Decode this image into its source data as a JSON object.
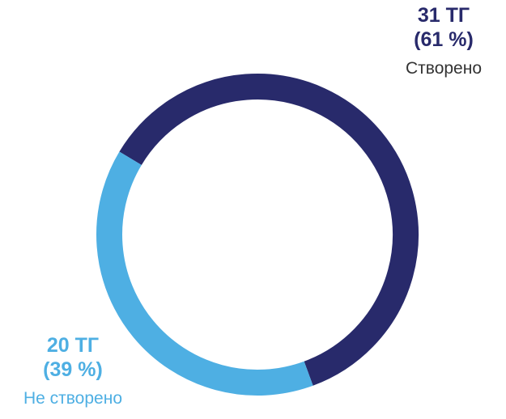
{
  "chart_data": {
    "type": "pie",
    "variant": "donut",
    "slices": [
      {
        "name": "Створено",
        "value": 31,
        "value_label": "31 ТГ",
        "percent": 61,
        "percent_label": "(61 %)",
        "color": "#282a6b"
      },
      {
        "name": "Не створено",
        "value": 20,
        "value_label": "20 ТГ",
        "percent": 39,
        "percent_label": "(39 %)",
        "color": "#4eafe3"
      }
    ],
    "start_angle_deg": 301,
    "direction": "clockwise"
  }
}
